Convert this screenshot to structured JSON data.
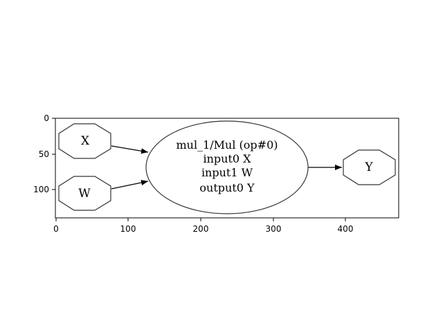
{
  "diagram": {
    "nodes": [
      {
        "id": "X",
        "label": "X",
        "shape": "octagon"
      },
      {
        "id": "W",
        "label": "W",
        "shape": "octagon"
      },
      {
        "id": "op",
        "shape": "ellipse",
        "lines": [
          "mul_1/Mul (op#0)",
          "input0 X",
          "input1 W",
          "output0 Y"
        ]
      },
      {
        "id": "Y",
        "label": "Y",
        "shape": "octagon"
      }
    ],
    "edges": [
      {
        "from": "X",
        "to": "op"
      },
      {
        "from": "W",
        "to": "op"
      },
      {
        "from": "op",
        "to": "Y"
      }
    ]
  },
  "axes": {
    "x_ticks": [
      "0",
      "100",
      "200",
      "300",
      "400"
    ],
    "y_ticks": [
      "0",
      "50",
      "100"
    ]
  },
  "colors": {
    "stroke": "#333333",
    "frame": "#000000",
    "background": "#ffffff"
  }
}
